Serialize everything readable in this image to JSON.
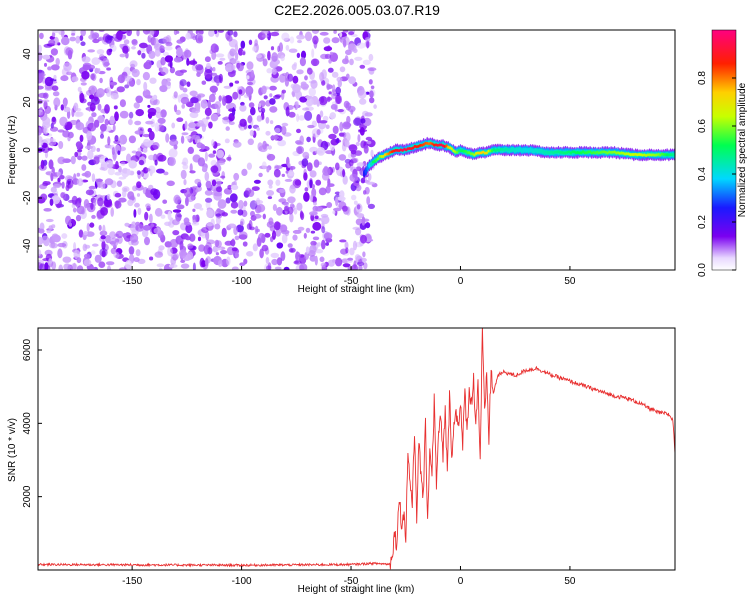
{
  "title": "C2E2.2026.005.03.07.R19",
  "chart_data": [
    {
      "type": "heatmap",
      "name": "spectrogram",
      "xlabel": "Height of straight line (km)",
      "ylabel": "Frequency (Hz)",
      "xlim": [
        -193,
        98
      ],
      "ylim": [
        -50,
        50
      ],
      "xticks": [
        -150,
        -100,
        -50,
        0,
        50
      ],
      "yticks": [
        -40,
        -20,
        0,
        20,
        40
      ],
      "colorbar": {
        "label": "Normalized spectral amplitude",
        "range": [
          0,
          1
        ],
        "ticks": [
          0.0,
          0.2,
          0.4,
          0.6,
          0.8
        ],
        "colormap": "purple-blue-cyan-green-yellow-red-magenta"
      },
      "noise_region": {
        "x_from": -193,
        "x_to": -40,
        "amplitude": 0.08
      },
      "signal_ridge": {
        "x": [
          -44,
          -42,
          -40,
          -37,
          -34,
          -30,
          -26,
          -22,
          -18,
          -14,
          -11,
          -8,
          -5,
          -2,
          0,
          3,
          6,
          9,
          12,
          15,
          20,
          30,
          40,
          50,
          60,
          70,
          80,
          90,
          98
        ],
        "freq": [
          -10,
          -7,
          -5,
          -3,
          -2,
          0,
          0,
          1,
          2,
          3,
          2,
          2,
          1,
          -1,
          0,
          -1,
          -2,
          -1,
          -1,
          0,
          0,
          0,
          -1,
          -1,
          -1,
          -1,
          -2,
          -2,
          -2
        ],
        "amplitude": [
          0.25,
          0.35,
          0.5,
          0.6,
          0.75,
          0.9,
          0.95,
          0.9,
          0.85,
          0.8,
          0.9,
          0.95,
          0.7,
          0.6,
          0.5,
          0.55,
          0.6,
          0.75,
          0.7,
          0.5,
          0.45,
          0.4,
          0.45,
          0.5,
          0.55,
          0.6,
          0.65,
          0.6,
          0.45
        ]
      }
    },
    {
      "type": "line",
      "name": "snr",
      "xlabel": "Height of straight line (km)",
      "ylabel": "SNR (10 * v/v)",
      "xlim": [
        -193,
        98
      ],
      "ylim": [
        0,
        6600
      ],
      "xticks": [
        -150,
        -100,
        -50,
        0,
        50
      ],
      "yticks": [
        2000,
        4000,
        6000
      ],
      "color": "#e83030",
      "series": [
        {
          "x": [
            -193,
            -150,
            -100,
            -50,
            -40,
            -32,
            -30,
            -29,
            -28,
            -27,
            -26,
            -25,
            -24,
            -23,
            -22,
            -21,
            -20,
            -19,
            -18,
            -17,
            -16,
            -15,
            -14,
            -13,
            -12,
            -11,
            -10,
            -9,
            -8,
            -7,
            -6,
            -5,
            -4,
            -3,
            -2,
            -1,
            0,
            1,
            2,
            3,
            4,
            5,
            6,
            7,
            8,
            9,
            10,
            11,
            12,
            13,
            14,
            15,
            17,
            20,
            25,
            30,
            35,
            40,
            45,
            50,
            55,
            60,
            65,
            70,
            75,
            80,
            85,
            90,
            95,
            97,
            98
          ],
          "y": [
            150,
            140,
            130,
            150,
            180,
            160,
            1000,
            700,
            2100,
            1200,
            1600,
            900,
            3200,
            2400,
            1800,
            3800,
            1500,
            3400,
            2600,
            2000,
            3900,
            1400,
            3300,
            2700,
            4600,
            2400,
            3600,
            4200,
            3000,
            4400,
            2600,
            4700,
            3200,
            3900,
            4300,
            4000,
            4600,
            3300,
            4900,
            3700,
            5000,
            4500,
            5200,
            4000,
            5100,
            3000,
            6500,
            4200,
            5300,
            3600,
            5500,
            4800,
            5300,
            5400,
            5300,
            5450,
            5500,
            5350,
            5250,
            5150,
            5050,
            4950,
            4850,
            4750,
            4700,
            4600,
            4450,
            4300,
            4250,
            4100,
            3200
          ]
        }
      ]
    }
  ]
}
